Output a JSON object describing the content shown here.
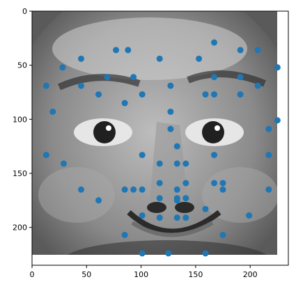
{
  "colors": {
    "point": "#1f77b4",
    "axis": "#000000",
    "photo_dark": "#2a2a2a",
    "photo_mid": "#7a7a7a",
    "photo_light": "#d8d8d8"
  },
  "chart_data": {
    "type": "scatter",
    "title": "",
    "xlabel": "",
    "ylabel": "",
    "xlim": [
      0,
      235
    ],
    "ylim": [
      235,
      0
    ],
    "y_inverted": true,
    "grid": false,
    "background_image": "grayscale photo of a child's face",
    "image_extent": {
      "x": [
        0,
        225
      ],
      "y": [
        0,
        225
      ]
    },
    "xticks": [
      0,
      50,
      100,
      150,
      200
    ],
    "yticks": [
      0,
      50,
      100,
      150,
      200
    ],
    "xtick_labels": [
      "0",
      "50",
      "100",
      "150",
      "200"
    ],
    "ytick_labels": [
      "0",
      "50",
      "100",
      "150",
      "200"
    ],
    "series": [
      {
        "points": [
          [
            77,
            36
          ],
          [
            88,
            36
          ],
          [
            117,
            44
          ],
          [
            45,
            44
          ],
          [
            28,
            52
          ],
          [
            167,
            29
          ],
          [
            191,
            36
          ],
          [
            207,
            36
          ],
          [
            153,
            44
          ],
          [
            225,
            52
          ],
          [
            13,
            69
          ],
          [
            45,
            69
          ],
          [
            69,
            61
          ],
          [
            93,
            61
          ],
          [
            61,
            77
          ],
          [
            101,
            77
          ],
          [
            85,
            85
          ],
          [
            127,
            69
          ],
          [
            167,
            61
          ],
          [
            191,
            61
          ],
          [
            207,
            69
          ],
          [
            159,
            77
          ],
          [
            167,
            77
          ],
          [
            191,
            77
          ],
          [
            19,
            93
          ],
          [
            127,
            93
          ],
          [
            127,
            109
          ],
          [
            217,
            109
          ],
          [
            225,
            101
          ],
          [
            13,
            133
          ],
          [
            29,
            141
          ],
          [
            101,
            133
          ],
          [
            117,
            141
          ],
          [
            133,
            125
          ],
          [
            133,
            141
          ],
          [
            141,
            141
          ],
          [
            167,
            133
          ],
          [
            217,
            133
          ],
          [
            45,
            165
          ],
          [
            61,
            175
          ],
          [
            85,
            165
          ],
          [
            93,
            165
          ],
          [
            101,
            165
          ],
          [
            117,
            159
          ],
          [
            117,
            173
          ],
          [
            133,
            165
          ],
          [
            133,
            173
          ],
          [
            133,
            175
          ],
          [
            141,
            159
          ],
          [
            141,
            173
          ],
          [
            167,
            159
          ],
          [
            175,
            159
          ],
          [
            175,
            165
          ],
          [
            217,
            165
          ],
          [
            159,
            183
          ],
          [
            101,
            189
          ],
          [
            117,
            191
          ],
          [
            133,
            191
          ],
          [
            141,
            191
          ],
          [
            199,
            189
          ],
          [
            85,
            207
          ],
          [
            175,
            207
          ],
          [
            101,
            224
          ],
          [
            125,
            224
          ],
          [
            159,
            224
          ]
        ]
      }
    ]
  }
}
